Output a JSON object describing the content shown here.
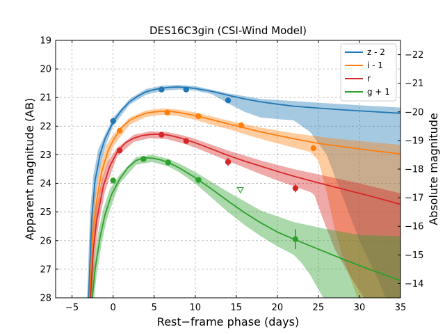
{
  "chart_data": {
    "type": "line",
    "title": "DES16C3gin (CSI-Wind Model)",
    "xlabel": "Rest−frame phase (days)",
    "ylabel": "Apparent magnitude (AB)",
    "ylabel_right": "Absolute magnitude",
    "xlim": [
      -7,
      35
    ],
    "ylim": [
      28,
      19
    ],
    "ylim_right": [
      -13.5,
      -22.5
    ],
    "x_ticks": [
      -5,
      0,
      5,
      10,
      15,
      20,
      25,
      30,
      35
    ],
    "y_ticks": [
      19,
      20,
      21,
      22,
      23,
      24,
      25,
      26,
      27,
      28
    ],
    "y_right_ticks": [
      -22,
      -21,
      -20,
      -19,
      -18,
      -17,
      -16,
      -15,
      -14
    ],
    "grid": true,
    "legend_position": "top-right",
    "series": [
      {
        "name": "z - 2",
        "color": "#1f77b4",
        "model": [
          [
            -3.0,
            28.2
          ],
          [
            -2.6,
            25.2
          ],
          [
            -2.2,
            23.9
          ],
          [
            -1.6,
            23.0
          ],
          [
            -1.0,
            22.45
          ],
          [
            0,
            21.85
          ],
          [
            1,
            21.45
          ],
          [
            2,
            21.15
          ],
          [
            3,
            20.95
          ],
          [
            4,
            20.8
          ],
          [
            5,
            20.72
          ],
          [
            6,
            20.67
          ],
          [
            7,
            20.64
          ],
          [
            8,
            20.63
          ],
          [
            9,
            20.65
          ],
          [
            10,
            20.68
          ],
          [
            12,
            20.78
          ],
          [
            14,
            20.92
          ],
          [
            16,
            21.05
          ],
          [
            18,
            21.15
          ],
          [
            20,
            21.23
          ],
          [
            22,
            21.3
          ],
          [
            25,
            21.37
          ],
          [
            28,
            21.43
          ],
          [
            31,
            21.48
          ],
          [
            35,
            21.55
          ]
        ],
        "band_upper": [
          [
            -3.2,
            28.2
          ],
          [
            -2.8,
            25.0
          ],
          [
            -2.4,
            23.7
          ],
          [
            -1.8,
            22.8
          ],
          [
            -1.0,
            22.3
          ],
          [
            0,
            21.7
          ],
          [
            2,
            21.05
          ],
          [
            4,
            20.7
          ],
          [
            6,
            20.58
          ],
          [
            8,
            20.56
          ],
          [
            10,
            20.6
          ],
          [
            14,
            20.85
          ],
          [
            18,
            21.05
          ],
          [
            22,
            21.12
          ],
          [
            26,
            21.2
          ],
          [
            30,
            21.27
          ],
          [
            35,
            21.35
          ]
        ],
        "band_lower": [
          [
            -2.8,
            28.2
          ],
          [
            -2.4,
            25.4
          ],
          [
            -2.0,
            24.1
          ],
          [
            -1.4,
            23.2
          ],
          [
            -0.8,
            22.6
          ],
          [
            0,
            22.0
          ],
          [
            2,
            21.25
          ],
          [
            4,
            20.9
          ],
          [
            6,
            20.76
          ],
          [
            8,
            20.72
          ],
          [
            10,
            20.76
          ],
          [
            12,
            20.88
          ],
          [
            14,
            21.2
          ],
          [
            16,
            21.5
          ],
          [
            18,
            21.7
          ],
          [
            20,
            21.75
          ],
          [
            22,
            21.8
          ],
          [
            24,
            22.2
          ],
          [
            26,
            23.0
          ],
          [
            28,
            24.5
          ],
          [
            30,
            26.0
          ],
          [
            32,
            27.2
          ],
          [
            33.5,
            28.2
          ],
          [
            35,
            28.2
          ]
        ],
        "points": [
          {
            "x": 0,
            "y": 21.82,
            "err": 0.07
          },
          {
            "x": 5.9,
            "y": 20.72,
            "err": 0.06
          },
          {
            "x": 8.9,
            "y": 20.72,
            "err": 0.06
          },
          {
            "x": 14.0,
            "y": 21.1,
            "err": 0.08
          }
        ],
        "upper_limits": []
      },
      {
        "name": "i - 1",
        "color": "#ff7f0e",
        "model": [
          [
            -2.9,
            28.2
          ],
          [
            -2.5,
            25.8
          ],
          [
            -2.0,
            24.6
          ],
          [
            -1.4,
            23.6
          ],
          [
            -0.6,
            22.85
          ],
          [
            0,
            22.5
          ],
          [
            1,
            22.05
          ],
          [
            2,
            21.8
          ],
          [
            3,
            21.65
          ],
          [
            4,
            21.55
          ],
          [
            5,
            21.5
          ],
          [
            6,
            21.48
          ],
          [
            7,
            21.48
          ],
          [
            8,
            21.52
          ],
          [
            9,
            21.57
          ],
          [
            10,
            21.63
          ],
          [
            12,
            21.77
          ],
          [
            14,
            21.92
          ],
          [
            16,
            22.06
          ],
          [
            18,
            22.2
          ],
          [
            20,
            22.32
          ],
          [
            22,
            22.44
          ],
          [
            25,
            22.6
          ],
          [
            28,
            22.72
          ],
          [
            31,
            22.83
          ],
          [
            35,
            22.97
          ]
        ],
        "band_upper": [
          [
            -3.1,
            28.2
          ],
          [
            -2.7,
            25.6
          ],
          [
            -2.2,
            24.4
          ],
          [
            -1.6,
            23.4
          ],
          [
            -0.8,
            22.65
          ],
          [
            0,
            22.3
          ],
          [
            2,
            21.7
          ],
          [
            4,
            21.45
          ],
          [
            6,
            21.38
          ],
          [
            8,
            21.42
          ],
          [
            10,
            21.52
          ],
          [
            14,
            21.8
          ],
          [
            18,
            22.05
          ],
          [
            22,
            22.25
          ],
          [
            26,
            22.4
          ],
          [
            30,
            22.52
          ],
          [
            35,
            22.65
          ]
        ],
        "band_lower": [
          [
            -2.7,
            28.2
          ],
          [
            -2.3,
            26.0
          ],
          [
            -1.8,
            24.8
          ],
          [
            -1.2,
            23.8
          ],
          [
            -0.4,
            23.05
          ],
          [
            0,
            22.7
          ],
          [
            2,
            21.95
          ],
          [
            4,
            21.68
          ],
          [
            6,
            21.6
          ],
          [
            8,
            21.65
          ],
          [
            10,
            21.78
          ],
          [
            12,
            21.95
          ],
          [
            14,
            22.1
          ],
          [
            16,
            22.28
          ],
          [
            18,
            22.45
          ],
          [
            20,
            22.6
          ],
          [
            22,
            22.75
          ],
          [
            24,
            22.9
          ],
          [
            25,
            23.2
          ],
          [
            26,
            24.3
          ],
          [
            27,
            25.6
          ],
          [
            28,
            26.6
          ],
          [
            29,
            27.4
          ],
          [
            30,
            28.2
          ],
          [
            35,
            28.2
          ]
        ],
        "points": [
          {
            "x": 0.8,
            "y": 22.16,
            "err": 0.07
          },
          {
            "x": 6.6,
            "y": 21.52,
            "err": 0.06
          },
          {
            "x": 10.4,
            "y": 21.65,
            "err": 0.07
          },
          {
            "x": 15.6,
            "y": 21.97,
            "err": 0.07
          },
          {
            "x": 24.4,
            "y": 22.77,
            "err": 0.08
          }
        ],
        "upper_limits": []
      },
      {
        "name": "r",
        "color": "#d62728",
        "model": [
          [
            -2.8,
            28.2
          ],
          [
            -2.4,
            26.3
          ],
          [
            -2.0,
            25.3
          ],
          [
            -1.2,
            24.1
          ],
          [
            -0.4,
            23.4
          ],
          [
            0.5,
            22.9
          ],
          [
            1.5,
            22.58
          ],
          [
            2.5,
            22.42
          ],
          [
            3.5,
            22.33
          ],
          [
            4.5,
            22.29
          ],
          [
            5.5,
            22.28
          ],
          [
            6.5,
            22.3
          ],
          [
            7.5,
            22.36
          ],
          [
            8.5,
            22.44
          ],
          [
            10,
            22.58
          ],
          [
            12,
            22.8
          ],
          [
            14,
            23.02
          ],
          [
            16,
            23.22
          ],
          [
            18,
            23.4
          ],
          [
            20,
            23.58
          ],
          [
            22,
            23.75
          ],
          [
            25,
            23.98
          ],
          [
            28,
            24.2
          ],
          [
            31,
            24.42
          ],
          [
            35,
            24.73
          ]
        ],
        "band_upper": [
          [
            -3.0,
            28.2
          ],
          [
            -2.6,
            26.1
          ],
          [
            -2.2,
            25.1
          ],
          [
            -1.4,
            23.9
          ],
          [
            -0.6,
            23.2
          ],
          [
            0.5,
            22.75
          ],
          [
            2.5,
            22.3
          ],
          [
            4.5,
            22.18
          ],
          [
            6.5,
            22.2
          ],
          [
            8.5,
            22.32
          ],
          [
            10,
            22.45
          ],
          [
            14,
            22.85
          ],
          [
            18,
            23.2
          ],
          [
            22,
            23.5
          ],
          [
            26,
            23.75
          ],
          [
            30,
            24.0
          ],
          [
            35,
            24.35
          ]
        ],
        "band_lower": [
          [
            -2.6,
            28.2
          ],
          [
            -2.2,
            26.5
          ],
          [
            -1.8,
            25.5
          ],
          [
            -1.0,
            24.3
          ],
          [
            -0.2,
            23.6
          ],
          [
            0.5,
            23.05
          ],
          [
            2.5,
            22.55
          ],
          [
            4.5,
            22.42
          ],
          [
            6.5,
            22.45
          ],
          [
            8.5,
            22.6
          ],
          [
            10,
            22.75
          ],
          [
            12,
            22.98
          ],
          [
            14,
            23.22
          ],
          [
            16,
            23.45
          ],
          [
            18,
            23.68
          ],
          [
            20,
            23.9
          ],
          [
            22,
            24.1
          ],
          [
            24,
            24.3
          ],
          [
            24.5,
            24.4
          ],
          [
            25.5,
            25.2
          ],
          [
            27,
            26.3
          ],
          [
            29,
            27.3
          ],
          [
            31,
            28.2
          ],
          [
            35,
            28.2
          ]
        ],
        "points": [
          {
            "x": 0.8,
            "y": 22.85,
            "err": 0.07
          },
          {
            "x": 5.9,
            "y": 22.3,
            "err": 0.06
          },
          {
            "x": 8.9,
            "y": 22.52,
            "err": 0.07
          },
          {
            "x": 14.0,
            "y": 23.25,
            "err": 0.14
          },
          {
            "x": 22.2,
            "y": 24.17,
            "err": 0.14
          }
        ],
        "upper_limits": []
      },
      {
        "name": "g + 1",
        "color": "#2ca02c",
        "model": [
          [
            -2.6,
            28.2
          ],
          [
            -2.2,
            27.0
          ],
          [
            -1.6,
            25.9
          ],
          [
            -1.0,
            25.1
          ],
          [
            -0.2,
            24.4
          ],
          [
            0.8,
            23.85
          ],
          [
            1.8,
            23.45
          ],
          [
            2.8,
            23.2
          ],
          [
            3.8,
            23.1
          ],
          [
            4.8,
            23.12
          ],
          [
            5.8,
            23.18
          ],
          [
            6.8,
            23.28
          ],
          [
            8,
            23.45
          ],
          [
            10,
            23.8
          ],
          [
            12,
            24.2
          ],
          [
            14,
            24.62
          ],
          [
            16,
            25.02
          ],
          [
            18,
            25.38
          ],
          [
            20,
            25.7
          ],
          [
            22,
            25.95
          ],
          [
            25,
            26.3
          ],
          [
            28,
            26.65
          ],
          [
            31,
            26.98
          ],
          [
            35,
            27.4
          ]
        ],
        "band_upper": [
          [
            -2.8,
            28.2
          ],
          [
            -2.4,
            26.8
          ],
          [
            -1.8,
            25.7
          ],
          [
            -1.2,
            24.9
          ],
          [
            -0.4,
            24.2
          ],
          [
            0.8,
            23.7
          ],
          [
            2.8,
            23.08
          ],
          [
            4.8,
            23.0
          ],
          [
            6.8,
            23.15
          ],
          [
            8,
            23.3
          ],
          [
            10,
            23.6
          ],
          [
            14,
            24.3
          ],
          [
            18,
            24.95
          ],
          [
            22,
            25.35
          ],
          [
            26,
            25.6
          ],
          [
            30,
            25.8
          ],
          [
            35,
            25.85
          ]
        ],
        "band_lower": [
          [
            -2.4,
            28.2
          ],
          [
            -2.0,
            27.2
          ],
          [
            -1.4,
            26.1
          ],
          [
            -0.8,
            25.3
          ],
          [
            0,
            24.6
          ],
          [
            0.8,
            24.0
          ],
          [
            2.8,
            23.35
          ],
          [
            4.8,
            23.25
          ],
          [
            6.8,
            23.42
          ],
          [
            8,
            23.6
          ],
          [
            10,
            24.0
          ],
          [
            12,
            24.5
          ],
          [
            14,
            25.0
          ],
          [
            16,
            25.45
          ],
          [
            18,
            25.85
          ],
          [
            20,
            26.2
          ],
          [
            22,
            26.5
          ],
          [
            23,
            26.8
          ],
          [
            24,
            27.2
          ],
          [
            25,
            27.7
          ],
          [
            26,
            28.2
          ],
          [
            35,
            28.2
          ]
        ],
        "points": [
          {
            "x": 0,
            "y": 23.9,
            "err": 0.07
          },
          {
            "x": 3.7,
            "y": 23.15,
            "err": 0.06
          },
          {
            "x": 6.7,
            "y": 23.27,
            "err": 0.07
          },
          {
            "x": 10.4,
            "y": 23.88,
            "err": 0.08
          },
          {
            "x": 22.2,
            "y": 25.95,
            "err": 0.35
          }
        ],
        "upper_limits": [
          {
            "x": 15.5,
            "y": 24.23
          }
        ]
      }
    ]
  }
}
